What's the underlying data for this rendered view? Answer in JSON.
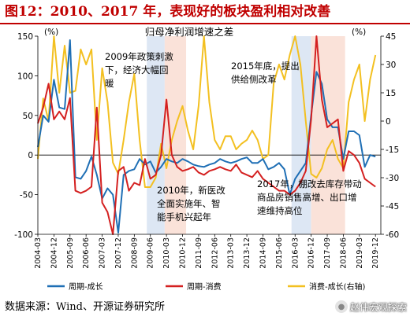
{
  "figure": {
    "title": "图12：2010、2017 年，表现好的板块盈利相对改善",
    "source": "数据来源：Wind、开源证券研究所",
    "watermark": "赵伟宏观探索"
  },
  "chart_data": {
    "type": "line",
    "title": "归母净利润增速之差",
    "left_axis": {
      "unit": "(%)",
      "ylim": [
        -100,
        150
      ],
      "ticks": [
        -100,
        -50,
        0,
        50,
        100,
        150
      ]
    },
    "right_axis": {
      "unit": "(%)",
      "ylim": [
        -60,
        45
      ],
      "ticks": [
        -60,
        -45,
        -30,
        -15,
        0,
        15,
        30,
        45
      ]
    },
    "x_ticks": [
      "2004-03",
      "2004-12",
      "2005-09",
      "2006-06",
      "2007-03",
      "2007-12",
      "2008-09",
      "2009-06",
      "2010-03",
      "2010-12",
      "2011-09",
      "2012-06",
      "2013-03",
      "2013-12",
      "2014-09",
      "2015-06",
      "2016-03",
      "2016-12",
      "2017-09",
      "2018-06",
      "2019-03",
      "2019-12"
    ],
    "x_range": [
      "2004-03",
      "2020-03"
    ],
    "shaded_periods": [
      {
        "color": "#dde7f4",
        "start": "2009-04",
        "end": "2010-02"
      },
      {
        "color": "#fae2d9",
        "start": "2010-02",
        "end": "2011-02"
      },
      {
        "color": "#dde7f4",
        "start": "2016-01",
        "end": "2016-12"
      },
      {
        "color": "#fae2d9",
        "start": "2016-12",
        "end": "2018-07"
      }
    ],
    "series": [
      {
        "name": "周期-成长",
        "axis": "left",
        "color": "#1f6fb5",
        "x": [
          "2004-03",
          "2004-06",
          "2004-09",
          "2004-12",
          "2005-03",
          "2005-06",
          "2005-09",
          "2005-12",
          "2006-03",
          "2006-06",
          "2006-09",
          "2006-12",
          "2007-03",
          "2007-06",
          "2007-09",
          "2007-12",
          "2008-03",
          "2008-06",
          "2008-09",
          "2008-12",
          "2009-03",
          "2009-06",
          "2009-09",
          "2009-12",
          "2010-03",
          "2010-06",
          "2010-09",
          "2010-12",
          "2011-03",
          "2011-06",
          "2011-09",
          "2011-12",
          "2012-03",
          "2012-06",
          "2012-09",
          "2012-12",
          "2013-03",
          "2013-06",
          "2013-09",
          "2013-12",
          "2014-03",
          "2014-06",
          "2014-09",
          "2014-12",
          "2015-03",
          "2015-06",
          "2015-09",
          "2015-12",
          "2016-03",
          "2016-06",
          "2016-09",
          "2016-12",
          "2017-03",
          "2017-06",
          "2017-09",
          "2017-12",
          "2018-03",
          "2018-06",
          "2018-09",
          "2018-12",
          "2019-03",
          "2019-06",
          "2019-09",
          "2019-12"
        ],
        "y": [
          10,
          50,
          42,
          95,
          60,
          58,
          145,
          -28,
          -30,
          -20,
          -2,
          -25,
          -55,
          -42,
          -50,
          -98,
          -25,
          -20,
          -18,
          -5,
          -12,
          -8,
          -22,
          -15,
          -5,
          -8,
          -10,
          -5,
          -8,
          -12,
          -14,
          -15,
          -12,
          -10,
          -5,
          -8,
          -10,
          -8,
          -5,
          -3,
          -10,
          -10,
          -5,
          -18,
          -15,
          -10,
          -18,
          -50,
          -30,
          -20,
          -10,
          50,
          105,
          90,
          45,
          35,
          35,
          -5,
          30,
          30,
          25,
          -15,
          0,
          -2
        ]
      },
      {
        "name": "周期-消费",
        "axis": "left",
        "color": "#d42020",
        "x": [
          "2004-03",
          "2004-06",
          "2004-09",
          "2004-12",
          "2005-03",
          "2005-06",
          "2005-09",
          "2005-12",
          "2006-03",
          "2006-06",
          "2006-09",
          "2006-12",
          "2007-03",
          "2007-06",
          "2007-09",
          "2007-12",
          "2008-03",
          "2008-06",
          "2008-09",
          "2008-12",
          "2009-03",
          "2009-06",
          "2009-09",
          "2009-12",
          "2010-03",
          "2010-06",
          "2010-09",
          "2010-12",
          "2011-03",
          "2011-06",
          "2011-09",
          "2011-12",
          "2012-03",
          "2012-06",
          "2012-09",
          "2012-12",
          "2013-03",
          "2013-06",
          "2013-09",
          "2013-12",
          "2014-03",
          "2014-06",
          "2014-09",
          "2014-12",
          "2015-03",
          "2015-06",
          "2015-09",
          "2015-12",
          "2016-03",
          "2016-06",
          "2016-09",
          "2016-12",
          "2017-03",
          "2017-06",
          "2017-09",
          "2017-12",
          "2018-03",
          "2018-06",
          "2018-09",
          "2018-12",
          "2019-03",
          "2019-06",
          "2019-09",
          "2019-12"
        ],
        "y": [
          40,
          60,
          90,
          45,
          55,
          45,
          72,
          -45,
          -48,
          -45,
          -40,
          60,
          -60,
          -72,
          -100,
          -20,
          -15,
          -45,
          -35,
          -38,
          -5,
          -30,
          -25,
          0,
          70,
          0,
          -15,
          -20,
          -18,
          -15,
          -22,
          -25,
          -20,
          -18,
          -15,
          -18,
          -20,
          -12,
          -22,
          -25,
          -28,
          -20,
          -30,
          -35,
          -40,
          -45,
          -45,
          -50,
          -45,
          -35,
          -20,
          45,
          155,
          70,
          35,
          40,
          45,
          -20,
          5,
          0,
          -10,
          -30,
          -35,
          -40
        ]
      },
      {
        "name": "消费-成长(右轴)",
        "axis": "right",
        "color": "#f3c021",
        "x": [
          "2004-03",
          "2004-06",
          "2004-09",
          "2004-12",
          "2005-03",
          "2005-06",
          "2005-09",
          "2005-12",
          "2006-03",
          "2006-06",
          "2006-09",
          "2006-12",
          "2007-03",
          "2007-06",
          "2007-09",
          "2007-12",
          "2008-03",
          "2008-06",
          "2008-09",
          "2008-12",
          "2009-03",
          "2009-06",
          "2009-09",
          "2009-12",
          "2010-03",
          "2010-06",
          "2010-09",
          "2010-12",
          "2011-03",
          "2011-06",
          "2011-09",
          "2011-12",
          "2012-03",
          "2012-06",
          "2012-09",
          "2012-12",
          "2013-03",
          "2013-06",
          "2013-09",
          "2013-12",
          "2014-03",
          "2014-06",
          "2014-09",
          "2014-12",
          "2015-03",
          "2015-06",
          "2015-09",
          "2015-12",
          "2016-03",
          "2016-06",
          "2016-09",
          "2016-12",
          "2017-03",
          "2017-06",
          "2017-09",
          "2017-12",
          "2018-03",
          "2018-06",
          "2018-09",
          "2018-12",
          "2019-03",
          "2019-06",
          "2019-09",
          "2019-12"
        ],
        "y": [
          -20,
          12,
          0,
          48,
          15,
          40,
          15,
          16,
          38,
          30,
          38,
          -10,
          28,
          10,
          -22,
          -28,
          -10,
          10,
          25,
          -10,
          -35,
          -35,
          -30,
          -12,
          -25,
          -10,
          0,
          8,
          -5,
          -15,
          8,
          45,
          10,
          -10,
          -15,
          -8,
          -8,
          -15,
          -12,
          -10,
          -5,
          -10,
          -20,
          -18,
          20,
          30,
          22,
          35,
          45,
          30,
          0,
          -28,
          -30,
          -25,
          -15,
          -10,
          -20,
          -25,
          10,
          22,
          30,
          0,
          22,
          35
        ]
      }
    ],
    "annotations": [
      {
        "id": "a1",
        "lines": [
          "2009年政策刺激",
          "下，经济大幅回",
          "暖"
        ]
      },
      {
        "id": "a2",
        "lines": [
          "2015年底，提出",
          "供给侧改革"
        ]
      },
      {
        "id": "a3",
        "lines": [
          "2010年，新医改",
          "全面实施年、智",
          "能手机兴起年"
        ]
      },
      {
        "id": "a4",
        "lines": [
          "2017年，棚改去库存带动",
          "商品房销售高增、出口增",
          "速维持高位"
        ]
      }
    ]
  }
}
